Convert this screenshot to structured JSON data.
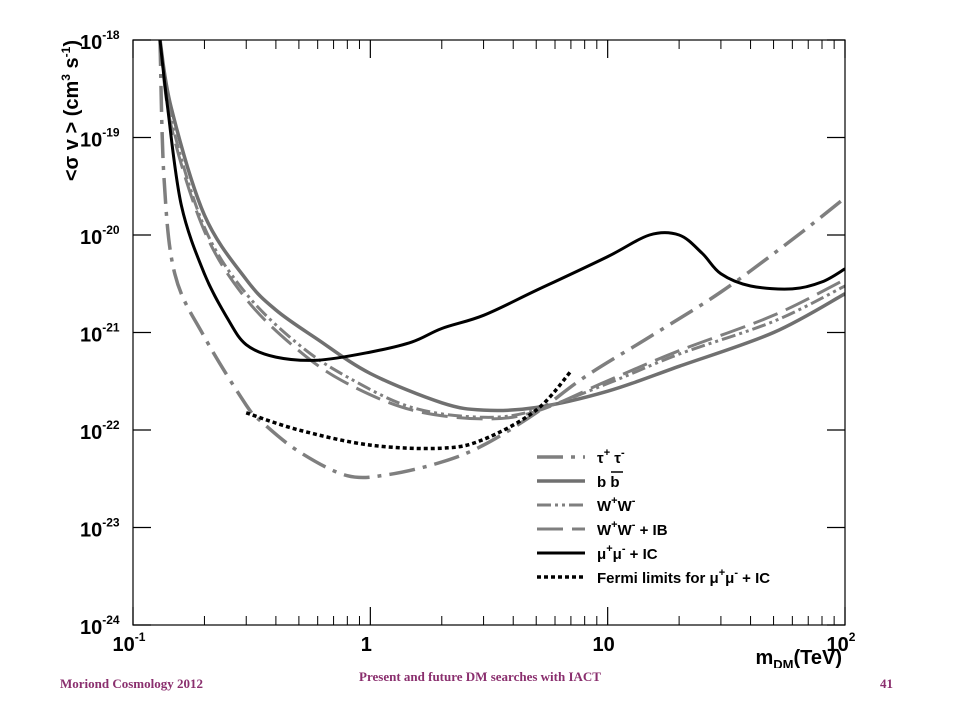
{
  "chart_data": {
    "type": "line",
    "xscale": "log",
    "yscale": "log",
    "xlim": [
      0.1,
      100
    ],
    "ylim": [
      1e-24,
      1e-18
    ],
    "grid": false,
    "legend_placement": "bottom-right",
    "xlabel": {
      "base": "m",
      "sub": "DM",
      "rest": "(TeV)"
    },
    "ylabel": {
      "p1": "<σ v > (cm",
      "sup1": "3",
      "p2": " s",
      "sup2": "-1",
      "p3": ")"
    },
    "x_ticks": [
      {
        "value": 0.1,
        "base": "10",
        "exp": "-1"
      },
      {
        "value": 1,
        "base": "1",
        "exp": ""
      },
      {
        "value": 10,
        "base": "10",
        "exp": ""
      },
      {
        "value": 100,
        "base": "10",
        "exp": "2"
      }
    ],
    "y_ticks": [
      {
        "value": 1e-24,
        "base": "10",
        "exp": "-24"
      },
      {
        "value": 1e-23,
        "base": "10",
        "exp": "-23"
      },
      {
        "value": 1e-22,
        "base": "10",
        "exp": "-22"
      },
      {
        "value": 1e-21,
        "base": "10",
        "exp": "-21"
      },
      {
        "value": 1e-20,
        "base": "10",
        "exp": "-20"
      },
      {
        "value": 1e-19,
        "base": "10",
        "exp": "-19"
      },
      {
        "value": 1e-18,
        "base": "10",
        "exp": "-18"
      }
    ],
    "series": [
      {
        "label": {
          "text": "τ",
          "sup": "+",
          "text2": " τ",
          "sup2": "-"
        },
        "color": "#7f7f7f",
        "style": "dashdot",
        "width": 3.5,
        "points": [
          [
            0.13,
            1e-18
          ],
          [
            0.135,
            4e-20
          ],
          [
            0.15,
            4e-21
          ],
          [
            0.2,
            9e-22
          ],
          [
            0.3,
            1.8e-22
          ],
          [
            0.35,
            1.2e-22
          ],
          [
            0.5,
            6e-23
          ],
          [
            0.8,
            3.4e-23
          ],
          [
            1.2,
            3.5e-23
          ],
          [
            2,
            4.7e-23
          ],
          [
            3,
            7e-23
          ],
          [
            5,
            1.5e-22
          ],
          [
            8,
            3.5e-22
          ],
          [
            15,
            9e-22
          ],
          [
            30,
            2.6e-21
          ],
          [
            60,
            9e-21
          ],
          [
            100,
            2.4e-20
          ]
        ]
      },
      {
        "label": {
          "text": "b b",
          "sup": "",
          "text2": "",
          "sup2": ""
        },
        "color": "#707070",
        "style": "solid",
        "width": 3.5,
        "points": [
          [
            0.13,
            1e-18
          ],
          [
            0.145,
            2e-19
          ],
          [
            0.2,
            1.6e-20
          ],
          [
            0.3,
            3.5e-21
          ],
          [
            0.4,
            1.7e-21
          ],
          [
            0.6,
            8.5e-22
          ],
          [
            1,
            3.8e-22
          ],
          [
            2,
            1.9e-22
          ],
          [
            3,
            1.6e-22
          ],
          [
            5,
            1.7e-22
          ],
          [
            10,
            2.5e-22
          ],
          [
            20,
            4.5e-22
          ],
          [
            50,
            1e-21
          ],
          [
            100,
            2.5e-21
          ]
        ]
      },
      {
        "label": {
          "text": "W",
          "sup": "+",
          "text2": "W",
          "sup2": "-"
        },
        "color": "#7f7f7f",
        "style": "dashdotdot",
        "width": 3,
        "points": [
          [
            0.13,
            1e-18
          ],
          [
            0.145,
            1.5e-19
          ],
          [
            0.2,
            1.2e-20
          ],
          [
            0.3,
            2.5e-21
          ],
          [
            0.5,
            7.5e-22
          ],
          [
            0.8,
            3.5e-22
          ],
          [
            1.5,
            1.7e-22
          ],
          [
            3,
            1.35e-22
          ],
          [
            5,
            1.6e-22
          ],
          [
            10,
            3e-22
          ],
          [
            20,
            6e-22
          ],
          [
            50,
            1.3e-21
          ],
          [
            100,
            3e-21
          ]
        ]
      },
      {
        "label": {
          "text": "W",
          "sup": "+",
          "text2": "W",
          "sup2": "- + IB"
        },
        "color": "#7f7f7f",
        "style": "longdash",
        "width": 3,
        "points": [
          [
            0.13,
            1e-18
          ],
          [
            0.145,
            1.3e-19
          ],
          [
            0.2,
            1.1e-20
          ],
          [
            0.3,
            2.2e-21
          ],
          [
            0.5,
            6.5e-22
          ],
          [
            0.8,
            3e-22
          ],
          [
            1.5,
            1.6e-22
          ],
          [
            3,
            1.3e-22
          ],
          [
            5,
            1.55e-22
          ],
          [
            10,
            3.2e-22
          ],
          [
            20,
            6.5e-22
          ],
          [
            50,
            1.5e-21
          ],
          [
            100,
            3.5e-21
          ]
        ]
      },
      {
        "label": {
          "text": "μ",
          "sup": "+",
          "text2": "μ",
          "sup2": "- + IC"
        },
        "color": "#000000",
        "style": "solid",
        "width": 3,
        "points": [
          [
            0.13,
            1e-18
          ],
          [
            0.14,
            2e-19
          ],
          [
            0.16,
            2e-20
          ],
          [
            0.2,
            4e-21
          ],
          [
            0.25,
            1.4e-21
          ],
          [
            0.3,
            7.5e-22
          ],
          [
            0.4,
            5.6e-22
          ],
          [
            0.6,
            5.2e-22
          ],
          [
            1,
            6.3e-22
          ],
          [
            1.5,
            8e-22
          ],
          [
            2,
            1.1e-21
          ],
          [
            3,
            1.5e-21
          ],
          [
            5,
            2.7e-21
          ],
          [
            10,
            6e-21
          ],
          [
            15,
            1e-20
          ],
          [
            20,
            1e-20
          ],
          [
            25,
            6.5e-21
          ],
          [
            30,
            4e-21
          ],
          [
            40,
            3e-21
          ],
          [
            60,
            2.8e-21
          ],
          [
            80,
            3.3e-21
          ],
          [
            100,
            4.5e-21
          ]
        ]
      },
      {
        "label": {
          "text": "Fermi limits for μ",
          "sup": "+",
          "text2": "μ",
          "sup2": "- + IC"
        },
        "color": "#000000",
        "style": "dotted",
        "width": 3.5,
        "points": [
          [
            0.3,
            1.5e-22
          ],
          [
            0.5,
            1e-22
          ],
          [
            1,
            7e-23
          ],
          [
            2,
            6.5e-23
          ],
          [
            3,
            8e-23
          ],
          [
            5,
            1.6e-22
          ],
          [
            7,
            4e-22
          ]
        ]
      }
    ]
  },
  "footer": {
    "left": "Moriond Cosmology 2012",
    "center": "Present and future DM searches with IACT",
    "right": "41"
  }
}
